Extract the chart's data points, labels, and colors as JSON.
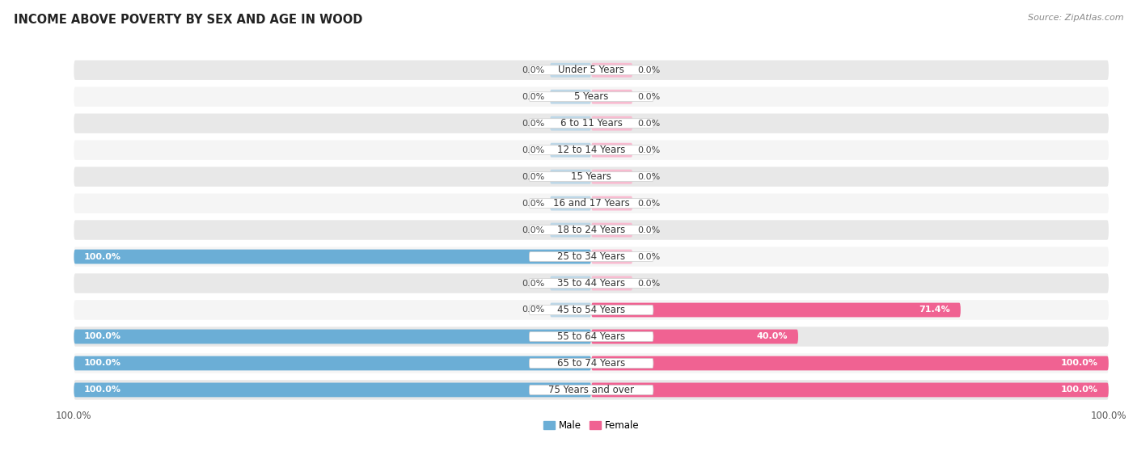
{
  "title": "INCOME ABOVE POVERTY BY SEX AND AGE IN WOOD",
  "source": "Source: ZipAtlas.com",
  "categories": [
    "Under 5 Years",
    "5 Years",
    "6 to 11 Years",
    "12 to 14 Years",
    "15 Years",
    "16 and 17 Years",
    "18 to 24 Years",
    "25 to 34 Years",
    "35 to 44 Years",
    "45 to 54 Years",
    "55 to 64 Years",
    "65 to 74 Years",
    "75 Years and over"
  ],
  "male": [
    0.0,
    0.0,
    0.0,
    0.0,
    0.0,
    0.0,
    0.0,
    100.0,
    0.0,
    0.0,
    100.0,
    100.0,
    100.0
  ],
  "female": [
    0.0,
    0.0,
    0.0,
    0.0,
    0.0,
    0.0,
    0.0,
    0.0,
    0.0,
    71.4,
    40.0,
    100.0,
    100.0
  ],
  "male_color": "#6baed6",
  "female_color": "#f06292",
  "male_color_light": "#bdd7e7",
  "female_color_light": "#f8bbd0",
  "bg_row_odd": "#e8e8e8",
  "bg_row_even": "#f5f5f5",
  "axis_max": 100.0,
  "legend_male": "Male",
  "legend_female": "Female",
  "stub_size": 8.0,
  "label_fontsize": 8.5,
  "val_fontsize": 8.0
}
